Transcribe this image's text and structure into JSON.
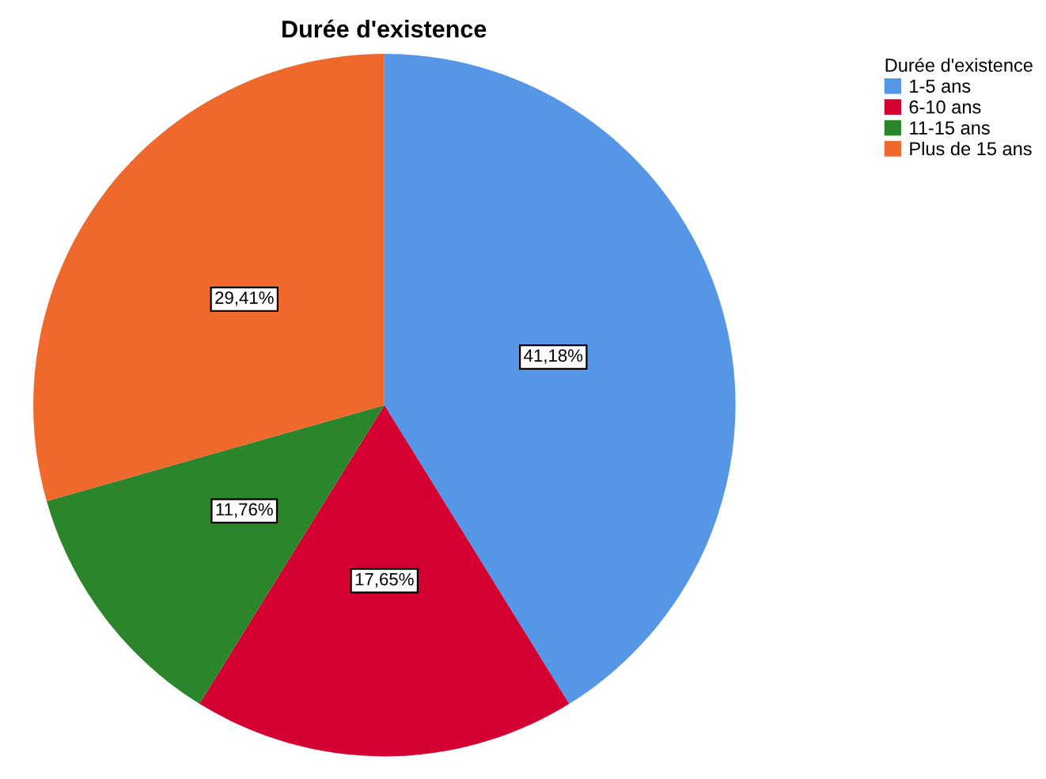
{
  "chart_data": {
    "type": "pie",
    "title": "Durée d'existence",
    "legend_title": "Durée d'existence",
    "categories": [
      "1-5 ans",
      "6-10 ans",
      "11-15 ans",
      "Plus de 15 ans"
    ],
    "values": [
      41.18,
      17.65,
      11.76,
      29.41
    ],
    "value_labels": [
      "41,18%",
      "17,65%",
      "11,76%",
      "29,41%"
    ],
    "colors": [
      "#5597e6",
      "#d40032",
      "#2b862b",
      "#f0692c"
    ],
    "legend": "top right"
  }
}
